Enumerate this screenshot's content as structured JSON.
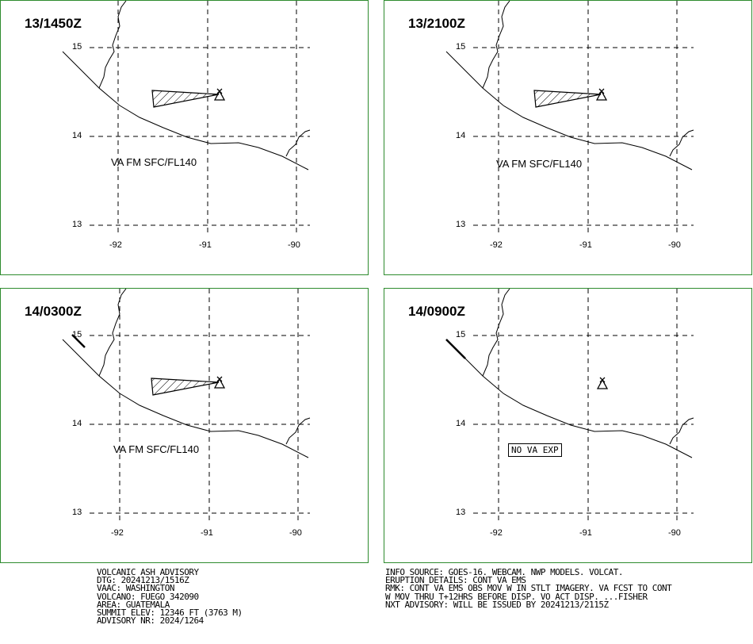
{
  "panels": [
    {
      "time": "13/1450Z",
      "va_label": "VA FM SFC/FL140",
      "no_va": ""
    },
    {
      "time": "13/2100Z",
      "va_label": "VA FM SFC/FL140",
      "no_va": ""
    },
    {
      "time": "14/0300Z",
      "va_label": "VA FM SFC/FL140",
      "no_va": ""
    },
    {
      "time": "14/0900Z",
      "va_label": "",
      "no_va": "NO VA EXP"
    }
  ],
  "axes": {
    "lat_labels": [
      "15",
      "14",
      "13"
    ],
    "lon_labels": [
      "-92",
      "-91",
      "-90"
    ]
  },
  "advisory_left": [
    "VOLCANIC ASH ADVISORY",
    "DTG: 20241213/1516Z",
    "VAAC: WASHINGTON",
    "VOLCANO: FUEGO 342090",
    "AREA: GUATEMALA",
    "SUMMIT ELEV: 12346 FT (3763 M)",
    "ADVISORY NR: 2024/1264"
  ],
  "advisory_right": [
    "INFO SOURCE: GOES-16. WEBCAM. NWP MODELS. VOLCAT.",
    "ERUPTION DETAILS: CONT VA EMS",
    "RMK: CONT VA EMS OBS MOV W IN STLT IMAGERY. VA FCST TO CONT",
    "W MOV THRU T+12HRS BEFORE DISP. VO ACT DISP. ...FISHER",
    "NXT ADVISORY: WILL BE ISSUED BY 20241213/2115Z"
  ],
  "colors": {
    "panel_border": "#2e8b2e",
    "lines": "#000000"
  }
}
